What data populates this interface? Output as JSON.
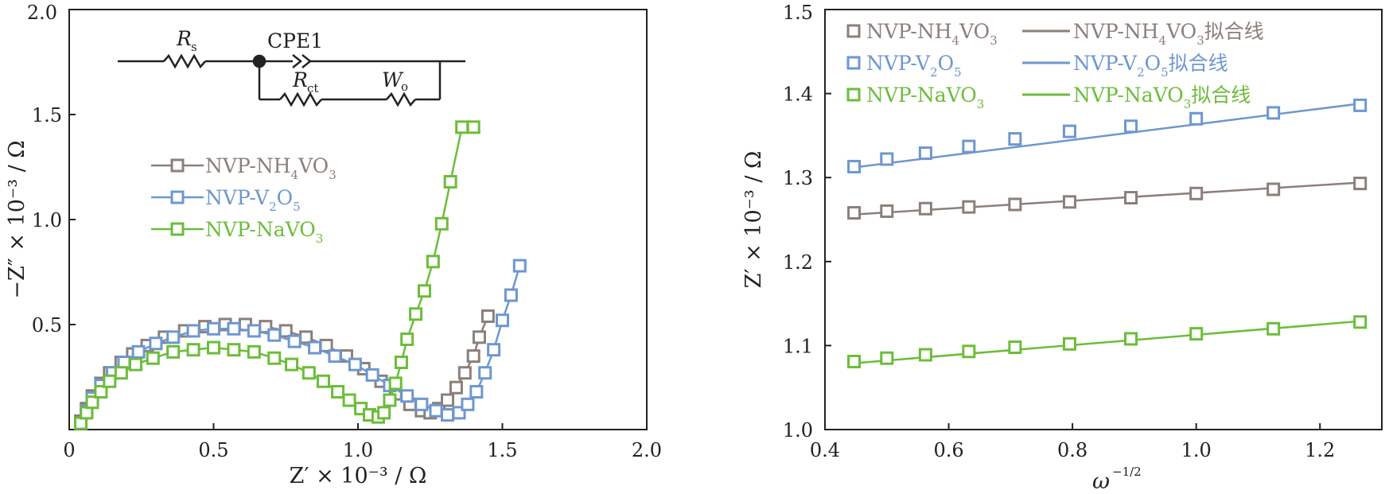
{
  "chart_data": [
    {
      "type": "scatter",
      "xlabel": "Z′ × 10⁻³ / Ω",
      "ylabel": "−Z″ × 10⁻³ / Ω",
      "xlim": [
        0,
        2.0
      ],
      "ylim": [
        0,
        2.0
      ],
      "xticks": [
        "0",
        "0.5",
        "1.0",
        "1.5",
        "2.0"
      ],
      "yticks": [
        "0.5",
        "1.0",
        "1.5",
        "2.0"
      ],
      "legend_position": "left-middle",
      "circuit": {
        "rs": "R",
        "rs_sub": "s",
        "cpe": "CPE1",
        "rct": "R",
        "rct_sub": "ct",
        "wo": "W",
        "wo_sub": "o"
      },
      "series": [
        {
          "name": "NVP-NH4VO3",
          "name_main": "NVP-NH",
          "name_sub1": "4",
          "name_mid": "VO",
          "name_sub2": "3",
          "name_end": "",
          "color": "#8c7f7a",
          "x": [
            0.04,
            0.06,
            0.08,
            0.11,
            0.14,
            0.18,
            0.22,
            0.27,
            0.33,
            0.4,
            0.47,
            0.54,
            0.61,
            0.68,
            0.75,
            0.82,
            0.89,
            0.96,
            1.02,
            1.08,
            1.13,
            1.18,
            1.22,
            1.25,
            1.28,
            1.31,
            1.34,
            1.37,
            1.4,
            1.42,
            1.45
          ],
          "y": [
            0.04,
            0.1,
            0.16,
            0.22,
            0.27,
            0.32,
            0.36,
            0.4,
            0.44,
            0.47,
            0.49,
            0.5,
            0.5,
            0.49,
            0.47,
            0.44,
            0.4,
            0.35,
            0.29,
            0.23,
            0.17,
            0.12,
            0.09,
            0.08,
            0.1,
            0.14,
            0.2,
            0.27,
            0.35,
            0.44,
            0.54
          ]
        },
        {
          "name": "NVP-V2O5",
          "name_main": "NVP-V",
          "name_sub1": "2",
          "name_mid": "O",
          "name_sub2": "5",
          "name_end": "",
          "color": "#6e97cf",
          "x": [
            0.04,
            0.06,
            0.08,
            0.11,
            0.15,
            0.19,
            0.24,
            0.3,
            0.36,
            0.43,
            0.5,
            0.57,
            0.64,
            0.71,
            0.78,
            0.85,
            0.92,
            0.99,
            1.05,
            1.11,
            1.17,
            1.22,
            1.27,
            1.31,
            1.35,
            1.38,
            1.41,
            1.44,
            1.47,
            1.5,
            1.53,
            1.56
          ],
          "y": [
            0.03,
            0.09,
            0.15,
            0.21,
            0.27,
            0.32,
            0.37,
            0.41,
            0.44,
            0.47,
            0.48,
            0.48,
            0.47,
            0.45,
            0.42,
            0.39,
            0.35,
            0.31,
            0.26,
            0.21,
            0.16,
            0.12,
            0.09,
            0.07,
            0.08,
            0.12,
            0.18,
            0.27,
            0.38,
            0.52,
            0.64,
            0.78
          ]
        },
        {
          "name": "NVP-NaVO3",
          "name_main": "NVP-NaVO",
          "name_sub1": "3",
          "name_mid": "",
          "name_sub2": "",
          "name_end": "",
          "color": "#6cbd3a",
          "x": [
            0.04,
            0.06,
            0.08,
            0.11,
            0.14,
            0.18,
            0.23,
            0.29,
            0.36,
            0.43,
            0.5,
            0.57,
            0.64,
            0.71,
            0.77,
            0.83,
            0.88,
            0.93,
            0.97,
            1.01,
            1.04,
            1.07,
            1.09,
            1.11,
            1.13,
            1.15,
            1.17,
            1.2,
            1.23,
            1.26,
            1.29,
            1.32,
            1.36,
            1.4
          ],
          "y": [
            0.03,
            0.08,
            0.13,
            0.18,
            0.23,
            0.27,
            0.31,
            0.34,
            0.37,
            0.38,
            0.39,
            0.38,
            0.37,
            0.34,
            0.31,
            0.27,
            0.23,
            0.18,
            0.14,
            0.1,
            0.07,
            0.06,
            0.08,
            0.14,
            0.22,
            0.32,
            0.43,
            0.55,
            0.66,
            0.8,
            0.98,
            1.18,
            1.44,
            1.44
          ]
        }
      ]
    },
    {
      "type": "scatter",
      "xlabel": "ω",
      "xlabel_sup": "−1/2",
      "ylabel": "Z′ × 10⁻³ / Ω",
      "xlim": [
        0.4,
        1.3
      ],
      "ylim": [
        1.0,
        1.5
      ],
      "xticks": [
        "0.4",
        "0.6",
        "0.8",
        "1.0",
        "1.2"
      ],
      "yticks": [
        "1.0",
        "1.1",
        "1.2",
        "1.3",
        "1.4",
        "1.5"
      ],
      "legend_position": "top",
      "fit_suffix": "拟合线",
      "x": [
        0.447,
        0.5,
        0.5625,
        0.6325,
        0.7071,
        0.7953,
        0.8944,
        1.0,
        1.1247,
        1.2649
      ],
      "series": [
        {
          "name": "NVP-NH4VO3",
          "name_main": "NVP-NH",
          "name_sub1": "4",
          "name_mid": "VO",
          "name_sub2": "3",
          "color": "#8c7f7a",
          "y": [
            1.258,
            1.26,
            1.263,
            1.265,
            1.268,
            1.271,
            1.276,
            1.281,
            1.286,
            1.293
          ],
          "fit": [
            1.256,
            1.294
          ]
        },
        {
          "name": "NVP-V2O5",
          "name_main": "NVP-V",
          "name_sub1": "2",
          "name_mid": "O",
          "name_sub2": "5",
          "color": "#6e97cf",
          "y": [
            1.313,
            1.322,
            1.329,
            1.337,
            1.346,
            1.355,
            1.361,
            1.37,
            1.377,
            1.386
          ],
          "fit": [
            1.312,
            1.388
          ]
        },
        {
          "name": "NVP-NaVO3",
          "name_main": "NVP-NaVO",
          "name_sub1": "3",
          "name_mid": "",
          "name_sub2": "",
          "color": "#6cbd3a",
          "y": [
            1.081,
            1.085,
            1.089,
            1.093,
            1.098,
            1.102,
            1.108,
            1.114,
            1.12,
            1.128
          ],
          "fit": [
            1.079,
            1.129
          ]
        }
      ]
    }
  ]
}
